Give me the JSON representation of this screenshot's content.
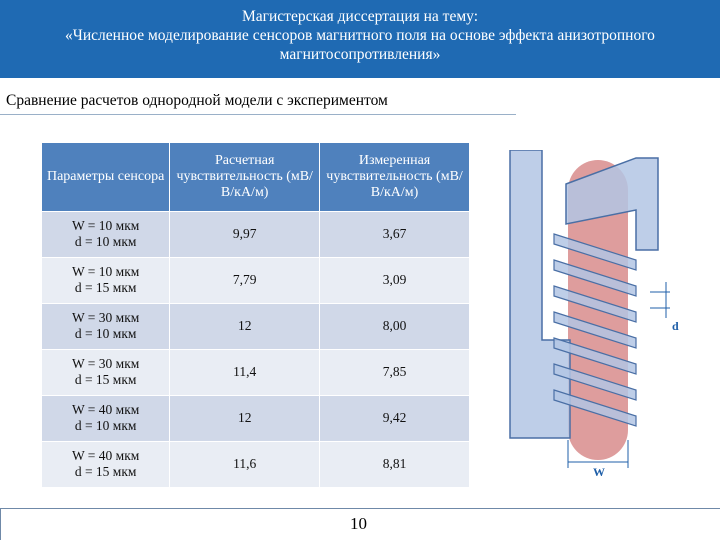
{
  "header": {
    "line1": "Магистерская диссертация на тему:",
    "line2": "«Численное моделирование сенсоров магнитного поля на основе эффекта анизотропного",
    "line3": "магнитосопротивления»"
  },
  "subtitle": "Сравнение расчетов однородной модели с экспериментом",
  "table": {
    "headers": {
      "param": "Параметры сенсора",
      "calc": "Расчетная чувствительность (мВ/В/кА/м)",
      "measured": "Измеренная чувствительность (мВ/В/кА/м)"
    },
    "rows": [
      {
        "w": "W = 10 мкм",
        "d": "d = 10 мкм",
        "calc": "9,97",
        "measured": "3,67"
      },
      {
        "w": "W = 10 мкм",
        "d": "d = 15 мкм",
        "calc": "7,79",
        "measured": "3,09"
      },
      {
        "w": "W = 30 мкм",
        "d": "d = 10 мкм",
        "calc": "12",
        "measured": "8,00"
      },
      {
        "w": "W = 30 мкм",
        "d": "d = 15 мкм",
        "calc": "11,4",
        "measured": "7,85"
      },
      {
        "w": "W = 40 мкм",
        "d": "d = 10 мкм",
        "calc": "12",
        "measured": "9,42"
      },
      {
        "w": "W = 40 мкм",
        "d": "d = 15 мкм",
        "calc": "11,6",
        "measured": "8,81"
      }
    ]
  },
  "diagram": {
    "label_d": "d",
    "label_w": "W",
    "colors": {
      "strip": "#d88c8c",
      "electrode": "#b3c6e4",
      "outline": "#4a6fa5",
      "dimension": "#1f5fa8"
    }
  },
  "page_number": "10"
}
